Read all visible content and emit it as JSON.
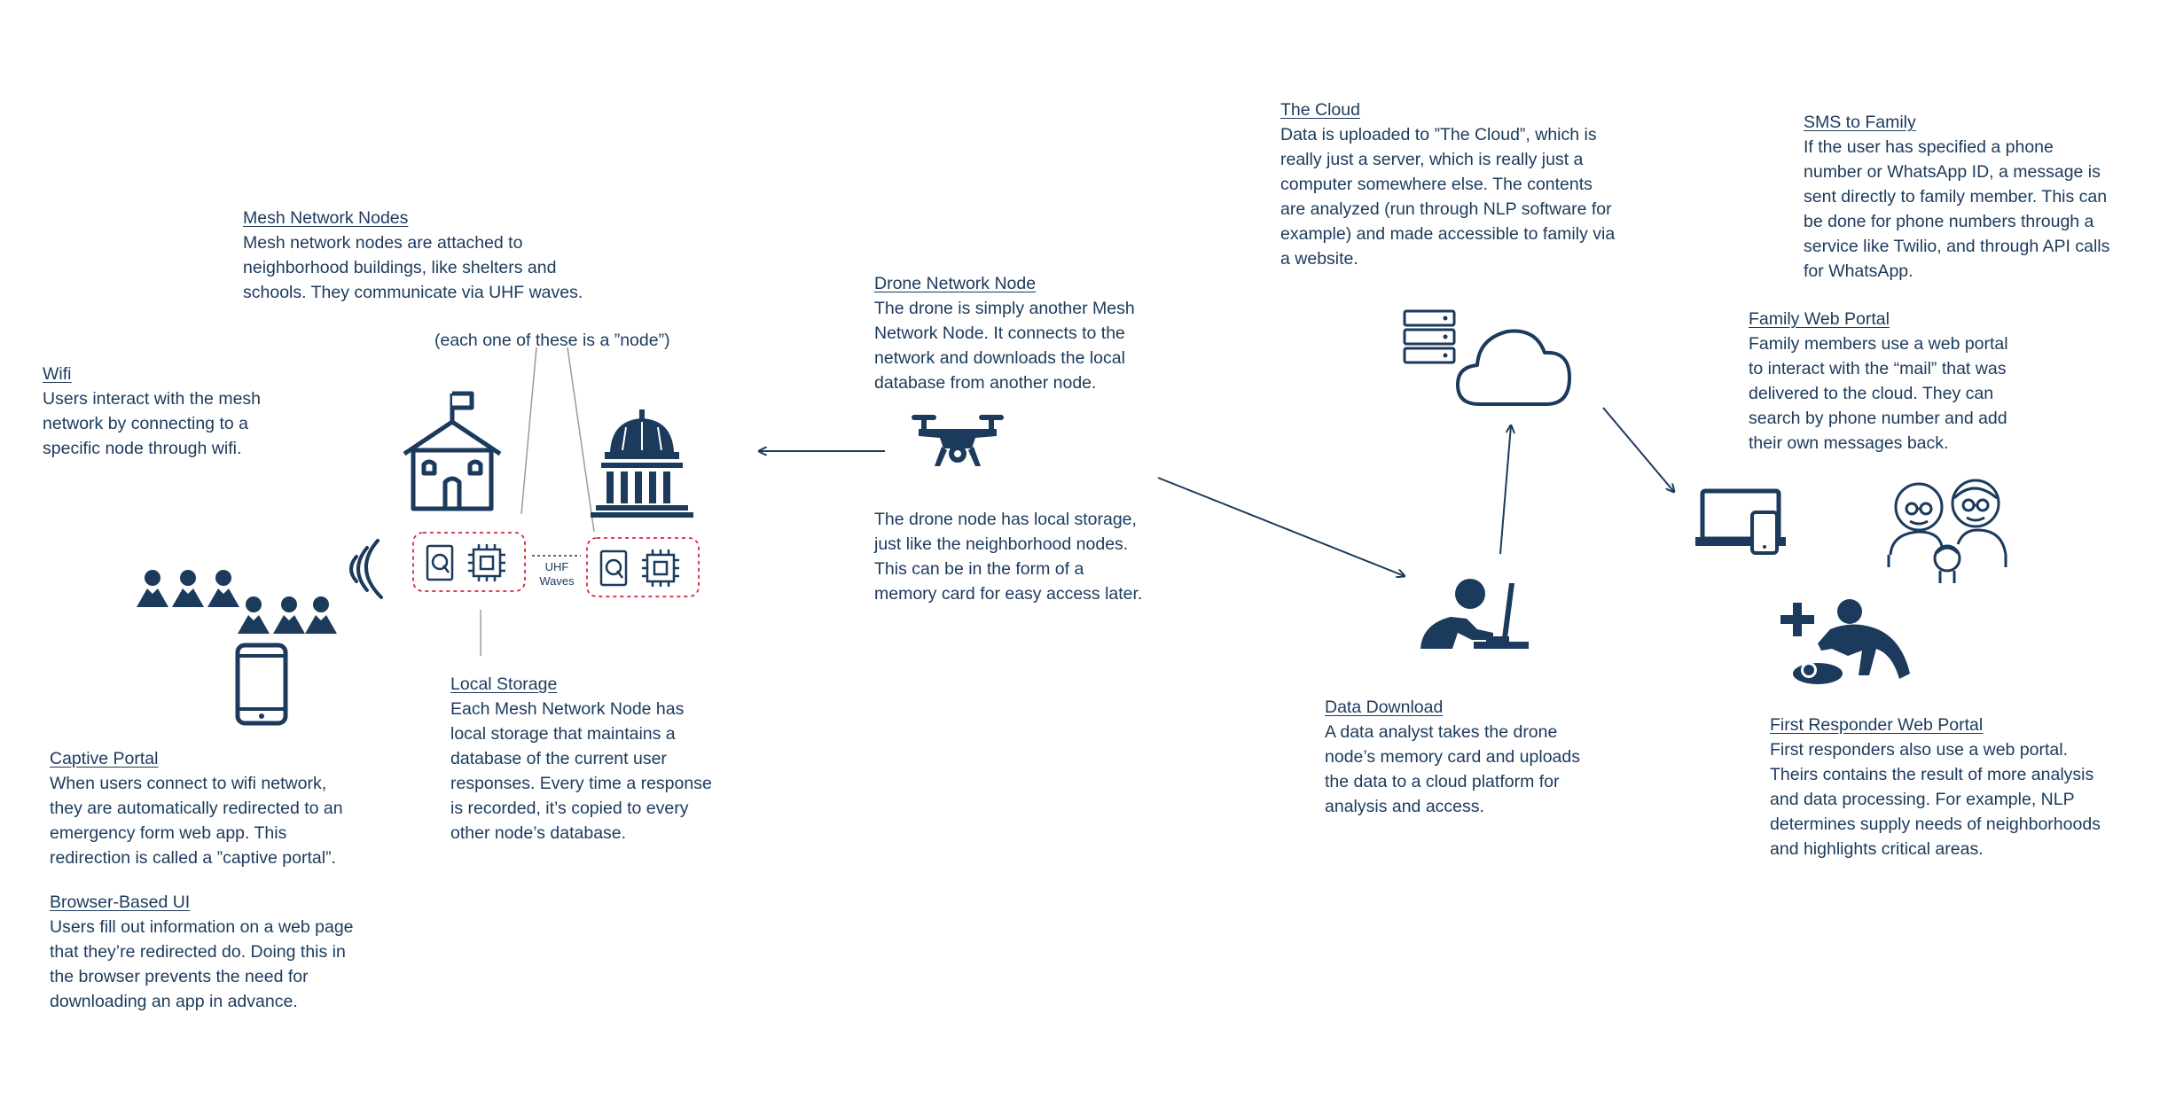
{
  "colors": {
    "navy": "#1b3a5c",
    "dashed_box": "#d6283a",
    "connector": "#9a9a9a"
  },
  "sections": {
    "wifi": {
      "title": "Wifi",
      "body": "Users interact with the mesh\nnetwork by connecting to a\nspecific node through wifi."
    },
    "mesh_nodes": {
      "title": "Mesh Network Nodes",
      "body": "Mesh network nodes are attached to\nneighborhood buildings, like shelters and\nschools. They communicate via UHF waves."
    },
    "node_note": "(each one of these is a ”node”)",
    "uhf_label": "UHF\nWaves",
    "local_storage": {
      "title": "Local Storage",
      "body": "Each Mesh Network Node has\nlocal storage that maintains a\ndatabase of the current user\nresponses. Every time a response\nis recorded, it’s copied to every\nother node’s database."
    },
    "captive_portal": {
      "title": "Captive Portal",
      "body": "When users connect to wifi network,\nthey are automatically redirected to an\nemergency form web app. This\nredirection is called a ”captive portal”."
    },
    "browser_ui": {
      "title": "Browser-Based UI",
      "body": "Users fill out information on a web page\nthat they’re redirected do. Doing this in\nthe browser prevents the need for\ndownloading an app in advance."
    },
    "drone_node": {
      "title": "Drone Network Node",
      "body": "The drone is simply another Mesh\nNetwork Node. It connects to the\nnetwork and downloads the local\ndatabase from another node."
    },
    "drone_storage": "The drone node has local storage,\njust like the neighborhood nodes.\nThis can be in the form of a\nmemory card for easy access later.",
    "cloud": {
      "title": "The Cloud",
      "body": "Data is uploaded to ”The Cloud”, which is\nreally just a server, which is really just a\ncomputer somewhere else. The contents\nare analyzed (run through NLP software for\nexample) and made accessible to family via\na website."
    },
    "data_download": {
      "title": "Data Download",
      "body": "A data analyst takes the drone\nnode’s memory card and uploads\nthe data to a cloud platform for\nanalysis and access."
    },
    "sms_family": {
      "title": "SMS to Family",
      "body": "If the user has specified a phone\nnumber or WhatsApp ID, a message is\nsent directly to family member. This can\nbe done for phone numbers through a\nservice like Twilio, and through API calls\nfor WhatsApp."
    },
    "family_portal": {
      "title": "Family Web Portal",
      "body": "Family members use a web portal\nto interact with the “mail” that was\ndelivered to the cloud. They can\nsearch by phone number and add\ntheir own messages back."
    },
    "responder_portal": {
      "title": "First Responder Web Portal",
      "body": "First responders also use a web portal.\nTheirs contains the result of more analysis\nand data processing. For example, NLP\ndetermines supply needs of neighborhoods\nand highlights critical areas."
    }
  },
  "icons": [
    "people-group-icon",
    "phone-icon",
    "wifi-signal-icon",
    "school-building-icon",
    "government-building-icon",
    "storage-chip-icon",
    "drone-icon",
    "server-icon",
    "cloud-icon",
    "data-analyst-icon",
    "laptop-phone-icon",
    "family-icon",
    "first-responder-icon"
  ]
}
